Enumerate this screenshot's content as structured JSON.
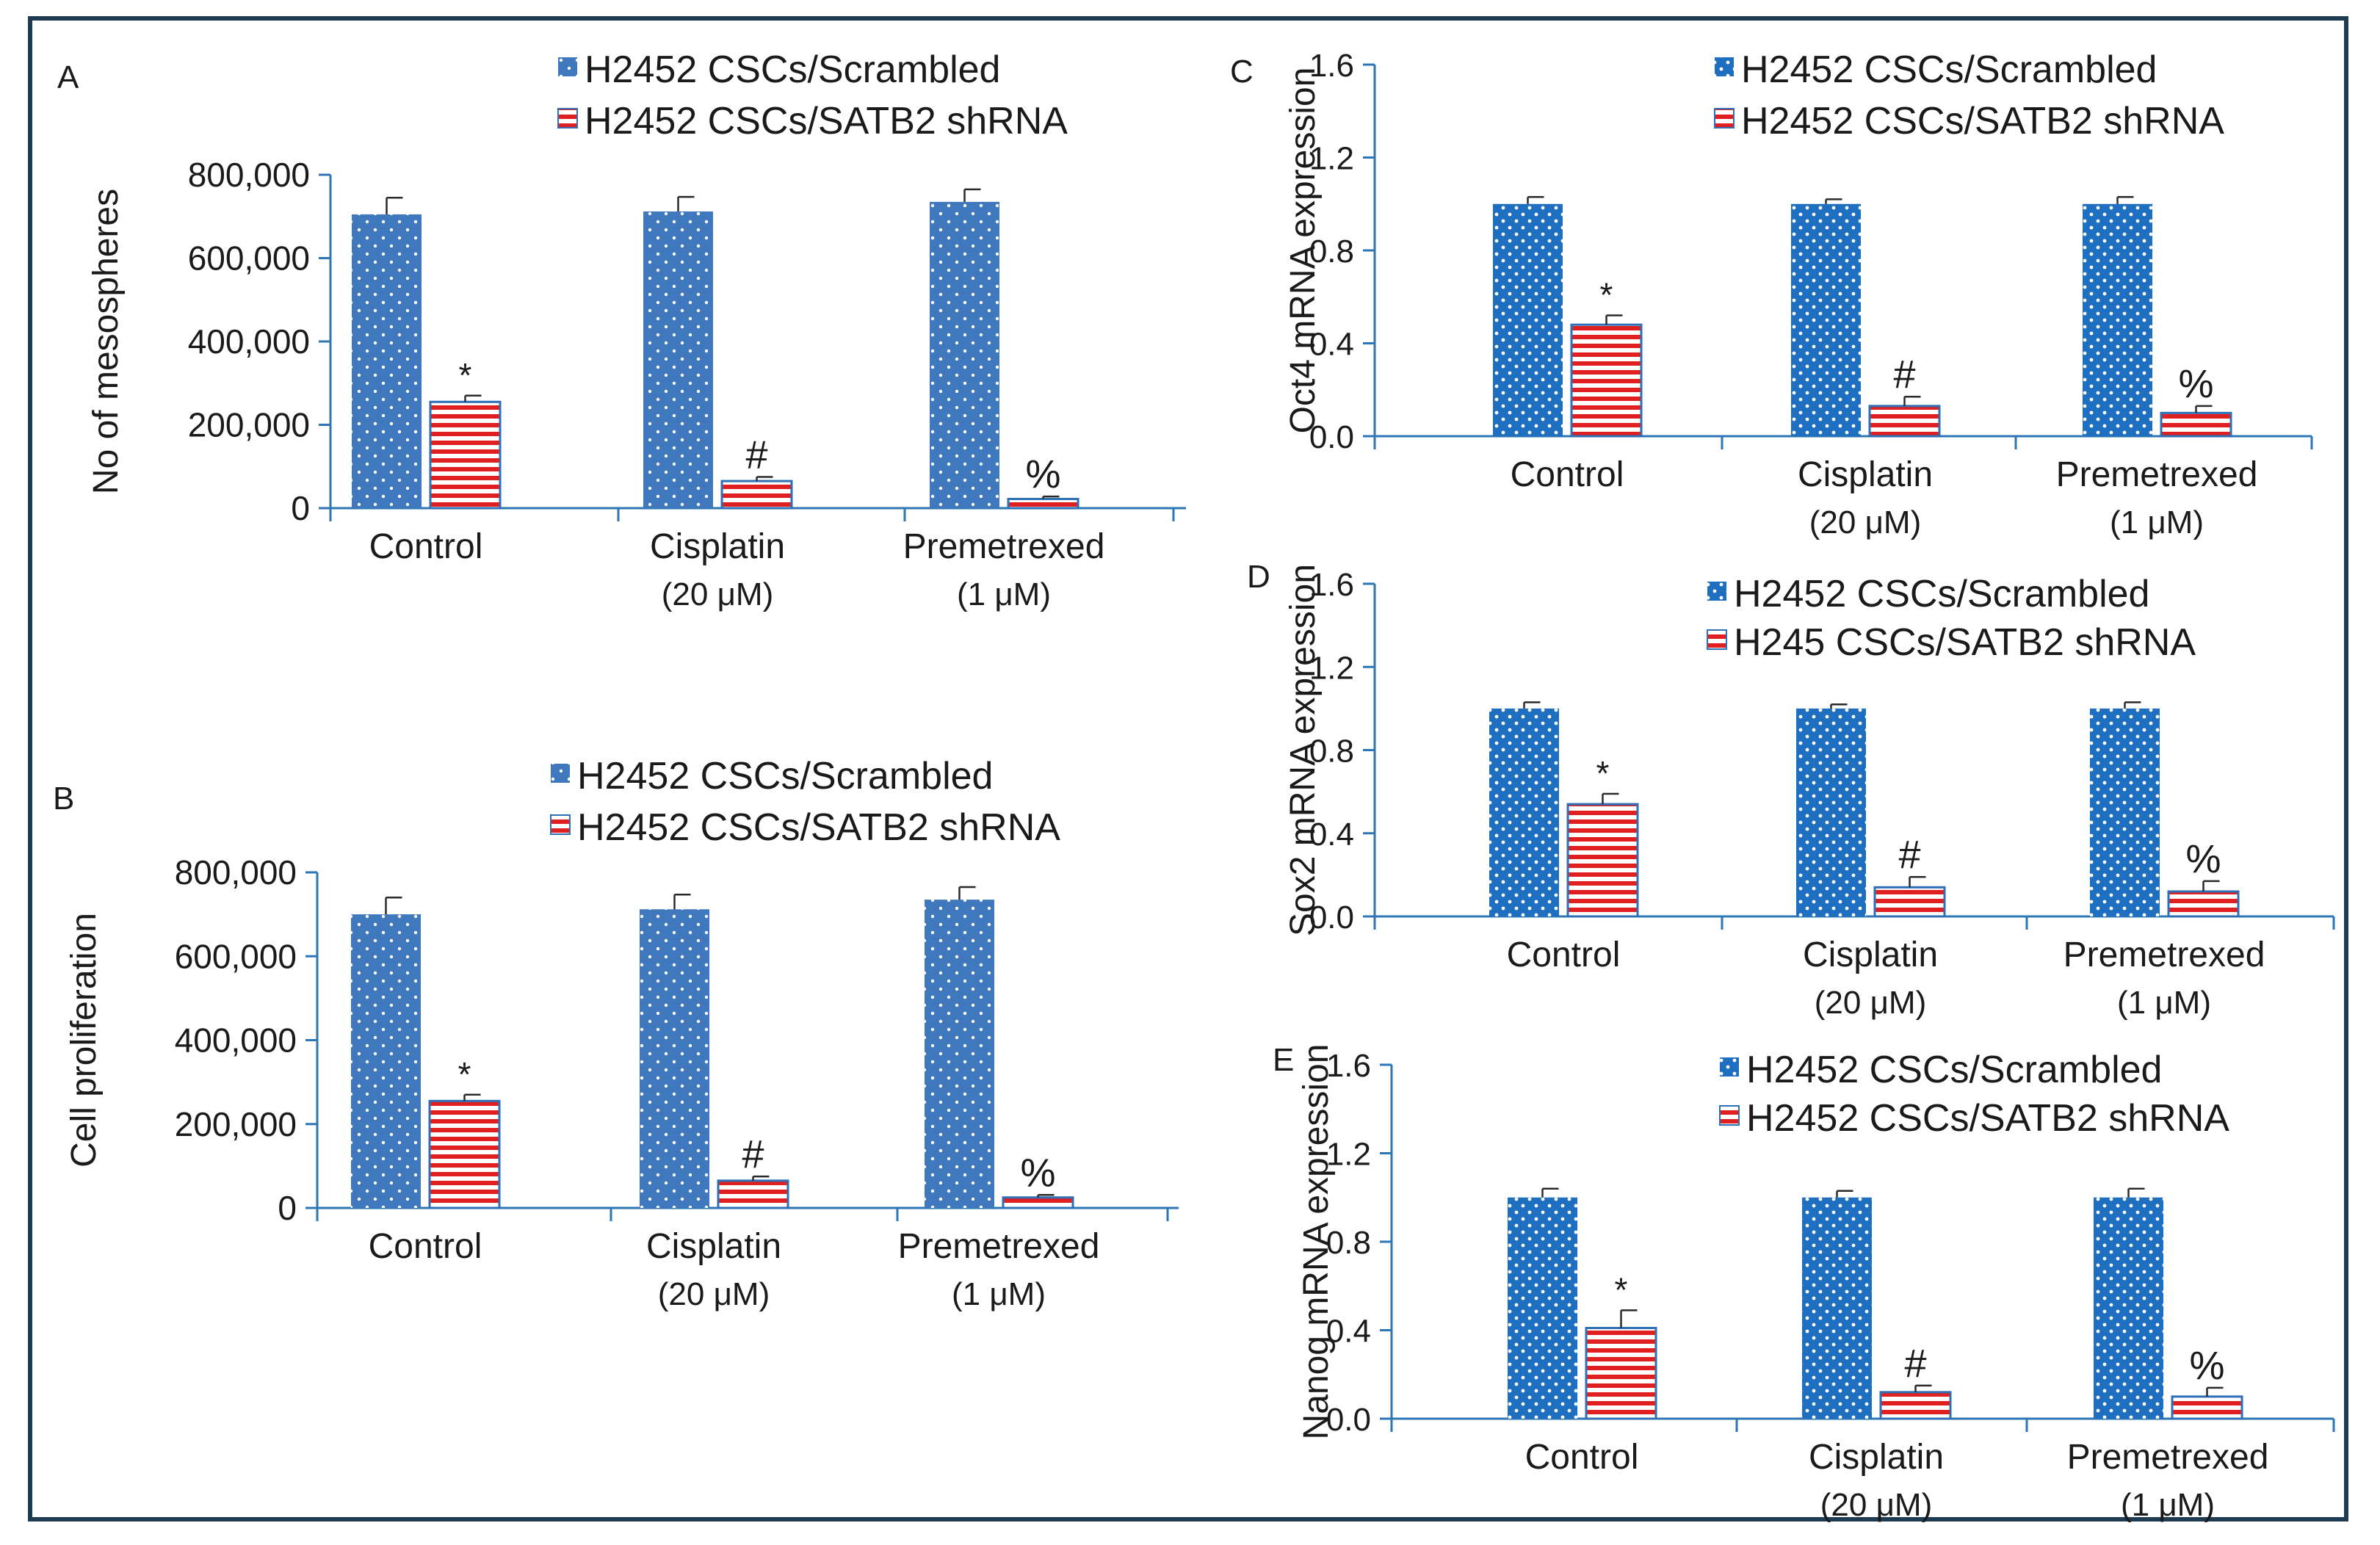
{
  "figure": {
    "border_color": "#1f3b52"
  },
  "colors": {
    "scrambled": "#2f6fb6",
    "scrambled_light": "#4a7fc1",
    "shrna": "#e02020",
    "axis": "#2e75b6"
  },
  "chart_data": [
    {
      "id": "A",
      "type": "bar",
      "panel_label": "A",
      "ylabel": "No of mesospheres",
      "categories": [
        [
          "Control"
        ],
        [
          "Cisplatin",
          "(20 μM)"
        ],
        [
          "Premetrexed",
          "(1 μM)"
        ]
      ],
      "ylim": [
        0,
        800000
      ],
      "yticks": [
        "0",
        "200,000",
        "400,000",
        "600,000",
        "800,000"
      ],
      "tick_values": [
        0,
        200000,
        400000,
        600000,
        800000
      ],
      "series": [
        {
          "name": "H2452 CSCs/Scrambled",
          "values": [
            705000,
            712000,
            735000
          ],
          "errors": [
            40000,
            35000,
            30000
          ]
        },
        {
          "name": "H2452 CSCs/SATB2 shRNA",
          "values": [
            255000,
            65000,
            22000
          ],
          "errors": [
            15000,
            10000,
            6000
          ]
        }
      ],
      "annotations": [
        "*",
        "#",
        "%"
      ]
    },
    {
      "id": "B",
      "type": "bar",
      "panel_label": "B",
      "ylabel": "Cell proliferation",
      "categories": [
        [
          "Control"
        ],
        [
          "Cisplatin",
          "(20 μM)"
        ],
        [
          "Premetrexed",
          "(1 μM)"
        ]
      ],
      "ylim": [
        0,
        800000
      ],
      "yticks": [
        "0",
        "200,000",
        "400,000",
        "600,000",
        "800,000"
      ],
      "tick_values": [
        0,
        200000,
        400000,
        600000,
        800000
      ],
      "series": [
        {
          "name": "H2452 CSCs/Scrambled",
          "values": [
            700000,
            712000,
            735000
          ],
          "errors": [
            40000,
            35000,
            30000
          ]
        },
        {
          "name": "H2452 CSCs/SATB2 shRNA",
          "values": [
            255000,
            65000,
            25000
          ],
          "errors": [
            15000,
            10000,
            6000
          ]
        }
      ],
      "annotations": [
        "*",
        "#",
        "%"
      ]
    },
    {
      "id": "C",
      "type": "bar",
      "panel_label": "C",
      "ylabel": "Oct4 mRNA  expression",
      "categories": [
        [
          "Control"
        ],
        [
          "Cisplatin",
          "(20 μM)"
        ],
        [
          "Premetrexed",
          "(1 μM)"
        ]
      ],
      "ylim": [
        0,
        1.6
      ],
      "yticks": [
        "0.0",
        "0.4",
        "0.8",
        "1.2",
        "1.6"
      ],
      "tick_values": [
        0,
        0.4,
        0.8,
        1.2,
        1.6
      ],
      "series": [
        {
          "name": "H2452 CSCs/Scrambled",
          "values": [
            1.0,
            1.0,
            1.0
          ],
          "errors": [
            0.03,
            0.02,
            0.03
          ]
        },
        {
          "name": "H2452 CSCs/SATB2 shRNA",
          "values": [
            0.48,
            0.13,
            0.1
          ],
          "errors": [
            0.04,
            0.04,
            0.03
          ]
        }
      ],
      "annotations": [
        "*",
        "#",
        "%"
      ]
    },
    {
      "id": "D",
      "type": "bar",
      "panel_label": "D",
      "ylabel": "Sox2 mRNA  expression",
      "categories": [
        [
          "Control"
        ],
        [
          "Cisplatin",
          "(20 μM)"
        ],
        [
          "Premetrexed",
          "(1 μM)"
        ]
      ],
      "ylim": [
        0,
        1.6
      ],
      "yticks": [
        "0.0",
        "0.4",
        "0.8",
        "1.2",
        "1.6"
      ],
      "tick_values": [
        0,
        0.4,
        0.8,
        1.2,
        1.6
      ],
      "series": [
        {
          "name": "H2452 CSCs/Scrambled",
          "values": [
            1.0,
            1.0,
            1.0
          ],
          "errors": [
            0.03,
            0.02,
            0.03
          ]
        },
        {
          "name": "H245 CSCs/SATB2 shRNA",
          "values": [
            0.54,
            0.14,
            0.12
          ],
          "errors": [
            0.05,
            0.05,
            0.05
          ]
        }
      ],
      "annotations": [
        "*",
        "#",
        "%"
      ]
    },
    {
      "id": "E",
      "type": "bar",
      "panel_label": "E",
      "ylabel": "Nanog mRNA  expression",
      "categories": [
        [
          "Control"
        ],
        [
          "Cisplatin",
          "(20 μM)"
        ],
        [
          "Premetrexed",
          "(1 μM)"
        ]
      ],
      "ylim": [
        0,
        1.6
      ],
      "yticks": [
        "0.0",
        "0.4",
        "0.8",
        "1.2",
        "1.6"
      ],
      "tick_values": [
        0,
        0.4,
        0.8,
        1.2,
        1.6
      ],
      "series": [
        {
          "name": "H2452 CSCs/Scrambled",
          "values": [
            1.0,
            1.0,
            1.0
          ],
          "errors": [
            0.04,
            0.03,
            0.04
          ]
        },
        {
          "name": "H2452 CSCs/SATB2 shRNA",
          "values": [
            0.41,
            0.12,
            0.1
          ],
          "errors": [
            0.08,
            0.03,
            0.04
          ]
        }
      ],
      "annotations": [
        "*",
        "#",
        "%"
      ]
    }
  ]
}
